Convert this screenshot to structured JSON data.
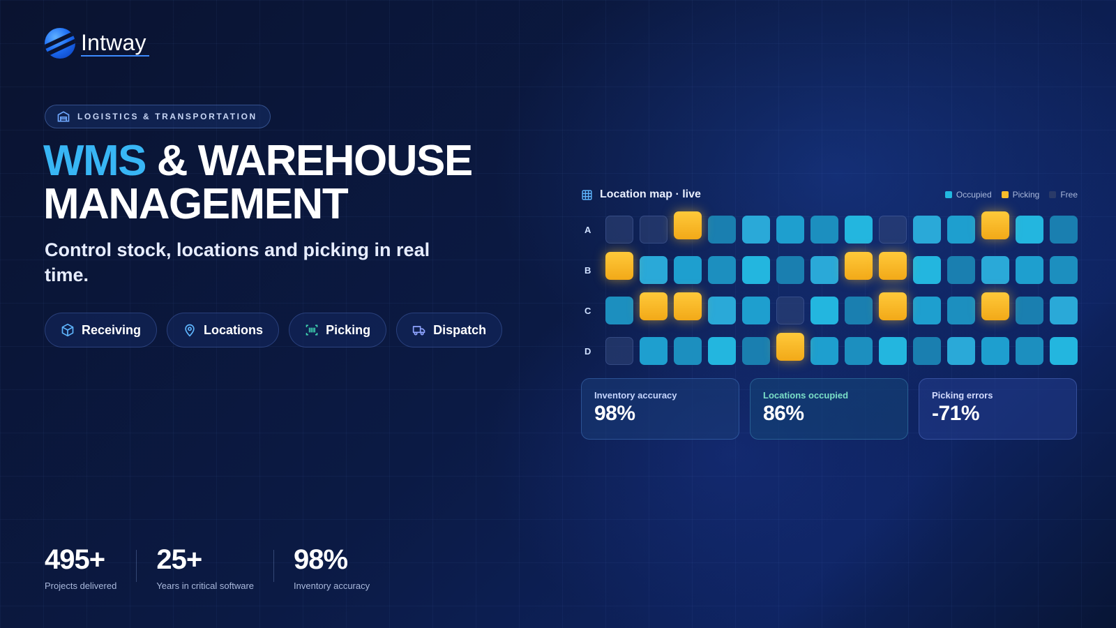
{
  "brand": {
    "name": "Intway"
  },
  "badge": {
    "label": "LOGISTICS & TRANSPORTATION",
    "icon": "warehouse-icon"
  },
  "headline": {
    "accent": "WMS",
    "rest_line1": " & WAREHOUSE",
    "line2": "MANAGEMENT"
  },
  "subtitle": "Control stock, locations and picking in real time.",
  "pills": [
    {
      "label": "Receiving",
      "icon": "box-icon"
    },
    {
      "label": "Locations",
      "icon": "map-pin-icon"
    },
    {
      "label": "Picking",
      "icon": "barcode-icon"
    },
    {
      "label": "Dispatch",
      "icon": "truck-icon"
    }
  ],
  "stats": [
    {
      "value": "495+",
      "label": "Projects delivered"
    },
    {
      "value": "25+",
      "label": "Years in critical software"
    },
    {
      "value": "98%",
      "label": "Inventory accuracy"
    }
  ],
  "map": {
    "title": "Location map · live",
    "icon": "grid-icon",
    "legend": [
      {
        "label": "Occupied",
        "color": "#22b8e0"
      },
      {
        "label": "Picking",
        "color": "#f8bd2a"
      },
      {
        "label": "Free",
        "color": "#2a3a68"
      }
    ],
    "rows": [
      {
        "label": "A",
        "cells": [
          "F",
          "F",
          "P",
          "O",
          "O",
          "O",
          "O",
          "O",
          "F",
          "O",
          "O",
          "P",
          "O",
          "O"
        ]
      },
      {
        "label": "B",
        "cells": [
          "P",
          "O",
          "O",
          "O",
          "O",
          "O",
          "O",
          "P",
          "P",
          "O",
          "O",
          "O",
          "O",
          "O"
        ]
      },
      {
        "label": "C",
        "cells": [
          "O",
          "P",
          "P",
          "O",
          "O",
          "F",
          "O",
          "O",
          "P",
          "O",
          "O",
          "P",
          "O",
          "O"
        ]
      },
      {
        "label": "D",
        "cells": [
          "F",
          "O",
          "O",
          "O",
          "O",
          "P",
          "O",
          "O",
          "O",
          "O",
          "O",
          "O",
          "O",
          "O"
        ]
      }
    ]
  },
  "kpis": [
    {
      "label": "Inventory accuracy",
      "value": "98%"
    },
    {
      "label": "Locations occupied",
      "value": "86%"
    },
    {
      "label": "Picking errors",
      "value": "-71%"
    }
  ]
}
